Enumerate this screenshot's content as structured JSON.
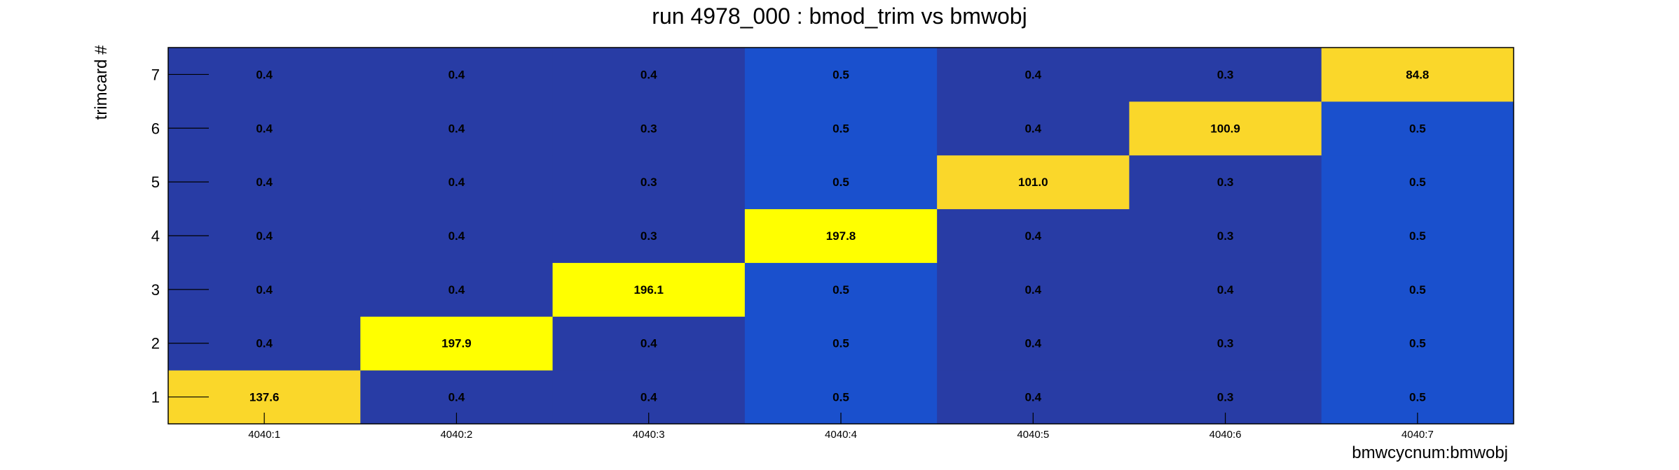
{
  "chart_data": {
    "type": "heatmap",
    "title": "run 4978_000 : bmod_trim vs bmwobj",
    "xlabel": "bmwcycnum:bmwobj",
    "ylabel": "trimcard #",
    "x_categories": [
      "4040:1",
      "4040:2",
      "4040:3",
      "4040:4",
      "4040:5",
      "4040:6",
      "4040:7"
    ],
    "y_categories": [
      "1",
      "2",
      "3",
      "4",
      "5",
      "6",
      "7"
    ],
    "values": [
      [
        137.6,
        0.4,
        0.4,
        0.5,
        0.4,
        0.3,
        0.5
      ],
      [
        0.4,
        197.9,
        0.4,
        0.5,
        0.4,
        0.3,
        0.5
      ],
      [
        0.4,
        0.4,
        196.1,
        0.5,
        0.4,
        0.4,
        0.5
      ],
      [
        0.4,
        0.4,
        0.3,
        197.8,
        0.4,
        0.3,
        0.5
      ],
      [
        0.4,
        0.4,
        0.3,
        0.5,
        101.0,
        0.3,
        0.5
      ],
      [
        0.4,
        0.4,
        0.3,
        0.5,
        0.4,
        100.9,
        0.5
      ],
      [
        0.4,
        0.4,
        0.4,
        0.5,
        0.4,
        0.3,
        84.8
      ]
    ],
    "value_labels": [
      [
        "137.6",
        "0.4",
        "0.4",
        "0.5",
        "0.4",
        "0.3",
        "0.5"
      ],
      [
        "0.4",
        "197.9",
        "0.4",
        "0.5",
        "0.4",
        "0.3",
        "0.5"
      ],
      [
        "0.4",
        "0.4",
        "196.1",
        "0.5",
        "0.4",
        "0.4",
        "0.5"
      ],
      [
        "0.4",
        "0.4",
        "0.3",
        "197.8",
        "0.4",
        "0.3",
        "0.5"
      ],
      [
        "0.4",
        "0.4",
        "0.3",
        "0.5",
        "101.0",
        "0.3",
        "0.5"
      ],
      [
        "0.4",
        "0.4",
        "0.3",
        "0.5",
        "0.4",
        "100.9",
        "0.5"
      ],
      [
        "0.4",
        "0.4",
        "0.4",
        "0.5",
        "0.4",
        "0.3",
        "84.8"
      ]
    ],
    "colormap": {
      "low_dark": "#283ca5",
      "low_mid": "#1a50cd",
      "mid_high": "#fad72a",
      "high": "#ffff00"
    },
    "grid": false,
    "legend": "none"
  }
}
